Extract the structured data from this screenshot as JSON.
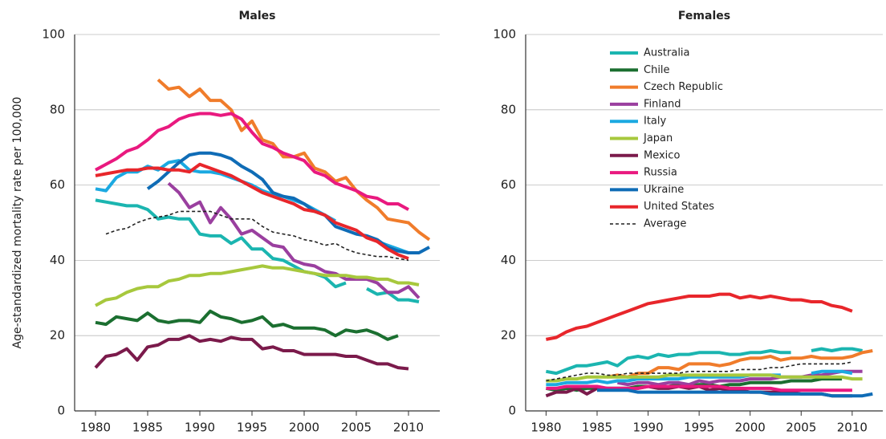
{
  "chart_data": [
    {
      "type": "line",
      "title": "Males",
      "ylabel": "Age-standardized mortality rate per 100,000",
      "x": [
        1980,
        1981,
        1982,
        1983,
        1984,
        1985,
        1986,
        1987,
        1988,
        1989,
        1990,
        1991,
        1992,
        1993,
        1994,
        1995,
        1996,
        1997,
        1998,
        1999,
        2000,
        2001,
        2002,
        2003,
        2004,
        2005,
        2006,
        2007,
        2008,
        2009,
        2010,
        2011,
        2012
      ],
      "xlim": [
        1978,
        2013
      ],
      "xticks": [
        1980,
        1985,
        1990,
        1995,
        2000,
        2005,
        2010
      ],
      "ylim": [
        0,
        100
      ],
      "yticks": [
        0,
        20,
        40,
        60,
        80,
        100
      ],
      "grid": true,
      "series": [
        {
          "color": "#1bb5b0",
          "values": [
            56,
            55.5,
            55,
            54.5,
            54.5,
            53.5,
            51,
            51.5,
            51,
            51,
            47,
            46.5,
            46.5,
            44.5,
            46,
            43,
            43,
            40.5,
            40,
            38.5,
            37,
            36.5,
            35.5,
            33,
            34,
            null,
            32.5,
            31,
            31.5,
            29.5,
            29.5,
            29,
            null
          ]
        },
        {
          "color": "#1b6f30",
          "values": [
            23.5,
            23,
            25,
            24.5,
            24,
            26,
            24,
            23.5,
            24,
            24,
            23.5,
            26.5,
            25,
            24.5,
            23.5,
            24,
            25,
            22.5,
            23,
            22,
            22,
            22,
            21.5,
            20,
            21.5,
            21,
            21.5,
            20.5,
            19,
            20,
            null,
            null,
            null
          ]
        },
        {
          "color": "#f07c2b",
          "values": [
            null,
            null,
            null,
            null,
            null,
            null,
            88,
            85.5,
            86,
            83.5,
            85.5,
            82.5,
            82.5,
            80,
            74.5,
            77,
            72,
            71,
            67.5,
            67.5,
            68.5,
            64.5,
            63.5,
            61,
            62,
            58.5,
            56,
            54,
            51,
            50.5,
            50,
            47.5,
            45.5
          ]
        },
        {
          "color": "#9a3f9f",
          "values": [
            null,
            null,
            null,
            null,
            null,
            null,
            null,
            60.5,
            58,
            54,
            55.5,
            50,
            54,
            51,
            47,
            48,
            46,
            44,
            43.5,
            40,
            39,
            38.5,
            37,
            36.5,
            35,
            35,
            35,
            34,
            31.5,
            31.5,
            33,
            30,
            null
          ]
        },
        {
          "color": "#1ba9e1",
          "values": [
            59,
            58.5,
            62,
            63.5,
            63.5,
            65,
            64,
            66,
            66.5,
            64,
            63.5,
            63.5,
            63,
            62,
            61,
            60,
            58.5,
            57.5,
            57,
            56,
            55,
            53.5,
            52,
            50.5,
            null,
            null,
            46.5,
            45,
            44,
            43,
            42,
            null,
            null
          ]
        },
        {
          "color": "#a7c83d",
          "values": [
            28,
            29.5,
            30,
            31.5,
            32.5,
            33,
            33,
            34.5,
            35,
            36,
            36,
            36.5,
            36.5,
            37,
            37.5,
            38,
            38.5,
            38,
            38,
            37.5,
            37,
            36.5,
            36,
            36,
            36,
            35.5,
            35.5,
            35,
            35,
            34,
            34,
            33.5,
            null
          ]
        },
        {
          "color": "#7b1a4b",
          "values": [
            11.5,
            14.5,
            15,
            16.5,
            13.5,
            17,
            17.5,
            19,
            19,
            20,
            18.5,
            19,
            18.5,
            19.5,
            19,
            19,
            16.5,
            17,
            16,
            16,
            15,
            15,
            15,
            15,
            14.5,
            14.5,
            13.5,
            12.5,
            12.5,
            11.5,
            11.2,
            null,
            null
          ]
        },
        {
          "color": "#e9197f",
          "values": [
            64,
            65.5,
            67,
            69,
            70,
            72,
            74.5,
            75.5,
            77.5,
            78.5,
            79,
            79,
            78.5,
            79,
            77.5,
            74,
            71,
            70,
            68.5,
            67.5,
            66.5,
            63.5,
            62.5,
            60.5,
            59.5,
            58.5,
            57,
            56.5,
            55,
            55,
            53.5,
            null,
            null
          ]
        },
        {
          "color": "#0f6cb6",
          "values": [
            null,
            null,
            null,
            null,
            null,
            59,
            61,
            63.5,
            66,
            68,
            68.5,
            68.5,
            68,
            67,
            65,
            63.5,
            61.5,
            58,
            57,
            56.5,
            55,
            53,
            52,
            49,
            48,
            47,
            46.5,
            45.5,
            43.5,
            42.5,
            42,
            42,
            43.5
          ]
        },
        {
          "color": "#e8262b",
          "values": [
            62.5,
            63,
            63.5,
            64,
            64,
            64.5,
            64.5,
            64,
            64,
            63.5,
            65.5,
            64.5,
            63.5,
            62.5,
            61,
            59.5,
            58,
            57,
            56,
            55,
            53.5,
            53,
            52,
            50,
            49,
            48,
            46,
            45,
            43,
            41.5,
            40.5,
            null,
            null
          ]
        },
        {
          "color": "#222222",
          "dashed": true,
          "values": [
            null,
            47,
            48,
            48.5,
            50,
            51,
            51.5,
            52,
            53,
            53,
            53,
            53,
            52,
            51,
            51,
            51,
            49,
            47.5,
            47,
            46.5,
            45.5,
            45,
            44,
            44.5,
            43,
            42,
            41.5,
            41,
            41,
            40.5,
            40,
            null,
            null
          ]
        }
      ]
    },
    {
      "type": "line",
      "title": "Females",
      "x": [
        1980,
        1981,
        1982,
        1983,
        1984,
        1985,
        1986,
        1987,
        1988,
        1989,
        1990,
        1991,
        1992,
        1993,
        1994,
        1995,
        1996,
        1997,
        1998,
        1999,
        2000,
        2001,
        2002,
        2003,
        2004,
        2005,
        2006,
        2007,
        2008,
        2009,
        2010,
        2011,
        2012
      ],
      "xlim": [
        1978,
        2013
      ],
      "xticks": [
        1980,
        1985,
        1990,
        1995,
        2000,
        2005,
        2010
      ],
      "ylim": [
        0,
        100
      ],
      "yticks": [
        0,
        20,
        40,
        60,
        80,
        100
      ],
      "grid": true,
      "series": [
        {
          "name": "Australia",
          "color": "#1bb5b0",
          "values": [
            10.5,
            10,
            11,
            12,
            12,
            12.5,
            13,
            12,
            14,
            14.5,
            14,
            15,
            14.5,
            15,
            15,
            15.5,
            15.5,
            15.5,
            15,
            15,
            15.5,
            15.5,
            16,
            15.5,
            15.5,
            null,
            16,
            16.5,
            16,
            16.5,
            16.5,
            16,
            null
          ]
        },
        {
          "name": "Chile",
          "color": "#1b6f30",
          "values": [
            6,
            5.5,
            6,
            5.5,
            6,
            6,
            6,
            6,
            6,
            6.5,
            6.5,
            6.5,
            6.5,
            7,
            6.5,
            7,
            7,
            6.5,
            7,
            7,
            7.5,
            7.5,
            7.5,
            7.5,
            8,
            8,
            8,
            8.5,
            8.5,
            8.5,
            null,
            null,
            null
          ]
        },
        {
          "name": "Czech Republic",
          "color": "#f07c2b",
          "values": [
            null,
            null,
            null,
            null,
            null,
            null,
            9,
            9.5,
            9,
            10,
            10,
            11.5,
            11.5,
            11,
            12.5,
            12.5,
            12.5,
            12,
            12.5,
            13.5,
            14,
            14,
            14.5,
            13.5,
            14,
            14,
            14.5,
            14,
            14,
            14,
            14.5,
            15.5,
            16
          ]
        },
        {
          "name": "Finland",
          "color": "#9a3f9f",
          "values": [
            null,
            null,
            null,
            null,
            null,
            null,
            null,
            7.5,
            7,
            7.5,
            7.5,
            7,
            7.5,
            7.5,
            7,
            8,
            7.5,
            8,
            8,
            8,
            8.5,
            8.5,
            8.5,
            9,
            9,
            9,
            9.5,
            9.5,
            10,
            10.5,
            10.5,
            10.5,
            null
          ]
        },
        {
          "name": "Italy",
          "color": "#1ba9e1",
          "values": [
            7,
            7,
            7.5,
            7.5,
            7.5,
            8,
            7.5,
            8,
            8,
            8.5,
            8.5,
            8.5,
            8.5,
            8.5,
            9,
            9,
            9,
            9,
            9,
            9,
            9.5,
            9.5,
            9.5,
            9.5,
            null,
            null,
            10,
            10.5,
            10.5,
            10.5,
            10,
            null,
            null
          ]
        },
        {
          "name": "Japan",
          "color": "#a7c83d",
          "values": [
            8,
            8,
            8.5,
            8.5,
            9,
            9,
            9,
            9,
            9,
            9,
            9,
            9,
            9.5,
            9.5,
            9.5,
            9.5,
            9.5,
            9.5,
            9.5,
            9.5,
            9.5,
            9.5,
            9.5,
            9,
            9,
            9,
            9,
            9,
            9,
            9,
            8.5,
            8.5,
            null
          ]
        },
        {
          "name": "Mexico",
          "color": "#7b1a4b",
          "values": [
            4,
            5,
            5,
            6,
            4.5,
            6,
            6,
            6,
            6,
            6,
            6.5,
            6,
            6,
            6.5,
            6,
            6.5,
            5.5,
            6,
            5.5,
            5.5,
            5,
            5,
            5,
            5,
            5,
            4.5,
            4.5,
            4.5,
            4,
            4,
            4,
            null,
            null
          ]
        },
        {
          "name": "Russia",
          "color": "#e9197f",
          "values": [
            6,
            6,
            6.5,
            6.5,
            6.5,
            6.5,
            6,
            6,
            6,
            6,
            6.5,
            6.5,
            6.5,
            6.5,
            6.5,
            6.5,
            6.5,
            6.5,
            6,
            6,
            6,
            6,
            6,
            5.5,
            5.5,
            5.5,
            5.5,
            5.5,
            5.5,
            5.5,
            5.5,
            null,
            null
          ]
        },
        {
          "name": "Ukraine",
          "color": "#0f6cb6",
          "values": [
            null,
            null,
            null,
            null,
            null,
            5.5,
            5.5,
            5.5,
            5.5,
            5,
            5,
            5,
            5,
            5,
            5,
            5,
            5,
            5,
            5,
            5,
            5,
            5,
            4.5,
            4.5,
            4.5,
            4.5,
            4.5,
            4.5,
            4,
            4,
            4,
            4,
            4.5
          ]
        },
        {
          "name": "United States",
          "color": "#e8262b",
          "values": [
            19,
            19.5,
            21,
            22,
            22.5,
            23.5,
            24.5,
            25.5,
            26.5,
            27.5,
            28.5,
            29,
            29.5,
            30,
            30.5,
            30.5,
            30.5,
            31,
            31,
            30,
            30.5,
            30,
            30.5,
            30,
            29.5,
            29.5,
            29,
            29,
            28,
            27.5,
            26.5,
            null,
            null
          ]
        },
        {
          "name": "Average",
          "color": "#222222",
          "dashed": true,
          "values": [
            8,
            8.5,
            9,
            9.5,
            10,
            10,
            9.5,
            9.5,
            10,
            10,
            10,
            10,
            10,
            10,
            10.5,
            10.5,
            10.5,
            10.5,
            10.5,
            11,
            11,
            11,
            11.5,
            11.5,
            12,
            12.5,
            12.5,
            12.5,
            12.5,
            12.5,
            13,
            null,
            null
          ]
        }
      ]
    }
  ]
}
